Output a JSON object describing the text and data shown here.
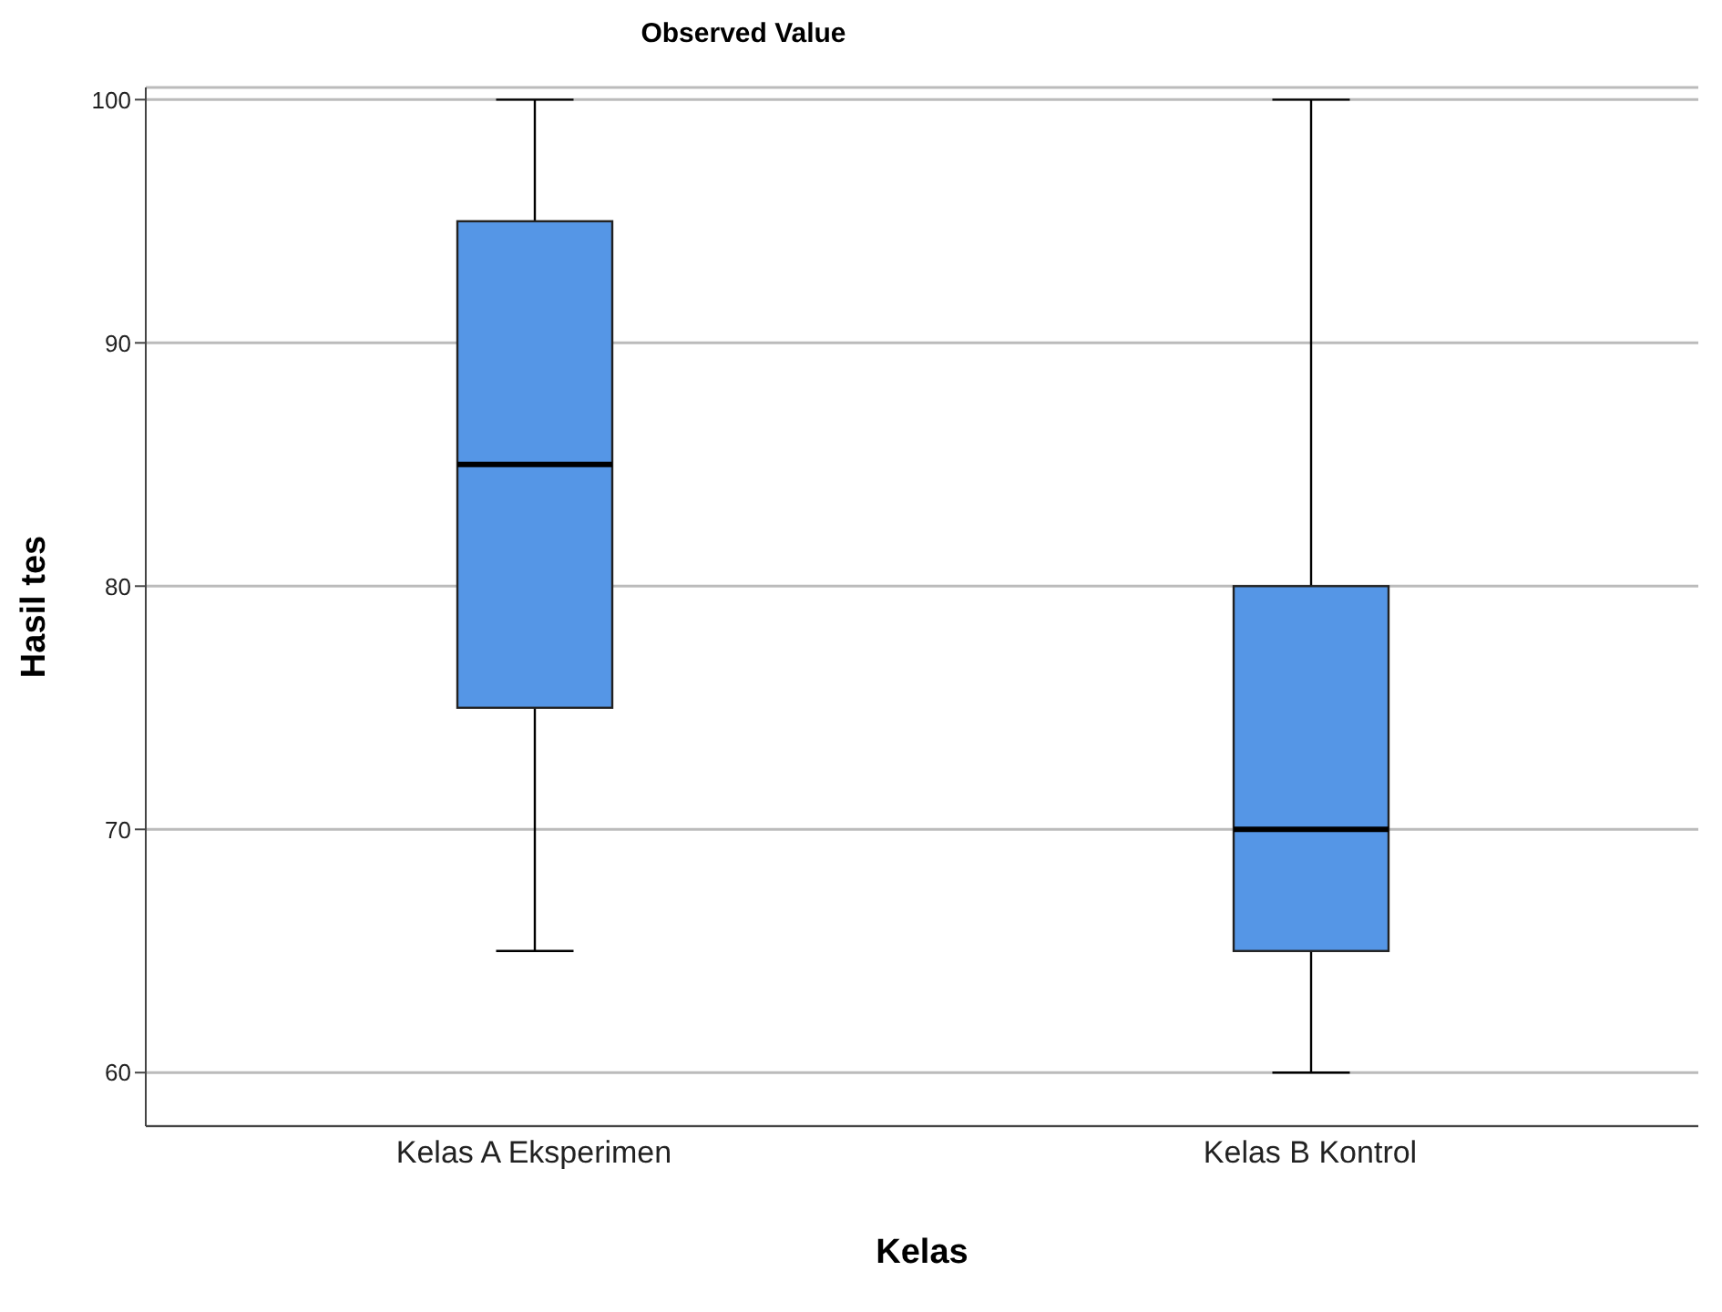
{
  "chart_data": {
    "type": "box",
    "title": "Observed Value",
    "xlabel": "Kelas",
    "ylabel": "Hasil tes",
    "categories": [
      "Kelas A Eksperimen",
      "Kelas B Kontrol"
    ],
    "series": [
      {
        "color": "#5596e6",
        "boxes": [
          {
            "low": 65,
            "q1": 75,
            "median": 85,
            "q3": 95,
            "high": 100
          },
          {
            "low": 60,
            "q1": 65,
            "median": 70,
            "q3": 80,
            "high": 100
          }
        ]
      }
    ],
    "ylim": [
      57.8,
      100.5
    ],
    "yticks": [
      60,
      70,
      80,
      90,
      100
    ],
    "grid": "y"
  }
}
